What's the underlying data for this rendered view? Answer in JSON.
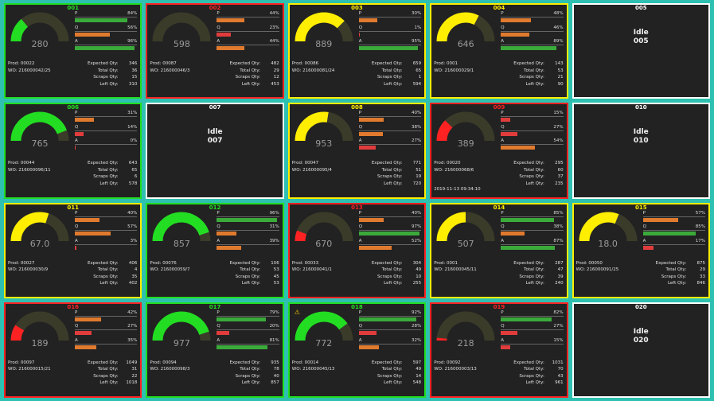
{
  "colors": {
    "green": "#22dd22",
    "red": "#ff2222",
    "yellow": "#ffee00",
    "white": "#ffffff",
    "bar_red": "#e03c3c",
    "bar_orange": "#e07a2e",
    "bar_green": "#3aaa3a"
  },
  "labels": {
    "p": "P",
    "q": "Q",
    "a": "A",
    "expected": "Expected Qty:",
    "total": "Total Qty:",
    "scraps": "Scraps Qty:",
    "left": "Left Qty:",
    "idle": "Idle"
  },
  "machines": [
    {
      "id": "001",
      "status": "green",
      "gauge": "280",
      "oee": 0.28,
      "p": "84%",
      "pv": 84,
      "q": "56%",
      "qv": 56,
      "a": "96%",
      "av": 96,
      "prod": "Prod: 00022",
      "wo": "WO: 216000042/25",
      "expected": "346",
      "total": "36",
      "scraps": "15",
      "left": "310"
    },
    {
      "id": "002",
      "status": "red",
      "gauge": "598",
      "oee": 0.0,
      "p": "44%",
      "pv": 44,
      "q": "23%",
      "qv": 23,
      "a": "44%",
      "av": 44,
      "prod": "Prod: 00087",
      "wo": "WO: 216000046/3",
      "expected": "482",
      "total": "29",
      "scraps": "12",
      "left": "453"
    },
    {
      "id": "003",
      "status": "yellow",
      "gauge": "889",
      "oee": 0.75,
      "p": "30%",
      "pv": 30,
      "q": "1%",
      "qv": 1,
      "a": "95%",
      "av": 95,
      "prod": "Prod: 00086",
      "wo": "WO: 216000081/24",
      "expected": "659",
      "total": "65",
      "scraps": "1",
      "left": "594"
    },
    {
      "id": "004",
      "status": "yellow",
      "gauge": "646",
      "oee": 0.65,
      "p": "48%",
      "pv": 48,
      "q": "46%",
      "qv": 46,
      "a": "89%",
      "av": 89,
      "prod": "Prod: 0001",
      "wo": "WO: 216000029/1",
      "expected": "143",
      "total": "53",
      "scraps": "21",
      "left": "90"
    },
    {
      "id": "005",
      "status": "white",
      "idle": true
    },
    {
      "id": "006",
      "status": "green",
      "gauge": "765",
      "oee": 0.88,
      "p": "31%",
      "pv": 31,
      "q": "14%",
      "qv": 14,
      "a": "0%",
      "av": 0,
      "prod": "Prod: 00044",
      "wo": "WO: 216000096/11",
      "expected": "643",
      "total": "65",
      "scraps": "6",
      "left": "578"
    },
    {
      "id": "007",
      "status": "white",
      "idle": true
    },
    {
      "id": "008",
      "status": "yellow",
      "gauge": "953",
      "oee": 0.55,
      "p": "40%",
      "pv": 40,
      "q": "38%",
      "qv": 38,
      "a": "27%",
      "av": 27,
      "prod": "Prod: 00047",
      "wo": "WO: 216000095/4",
      "expected": "771",
      "total": "51",
      "scraps": "19",
      "left": "720"
    },
    {
      "id": "009",
      "status": "red",
      "gauge": "389",
      "oee": 0.25,
      "p": "15%",
      "pv": 15,
      "q": "27%",
      "qv": 27,
      "a": "54%",
      "av": 54,
      "prod": "Prod: 00020",
      "wo": "WO: 216000068/6",
      "expected": "295",
      "total": "60",
      "scraps": "37",
      "left": "235",
      "timestamp": "2019-11-13 09:34:10"
    },
    {
      "id": "010",
      "status": "white",
      "idle": true
    },
    {
      "id": "011",
      "status": "yellow",
      "gauge": "67.0",
      "oee": 0.6,
      "p": "40%",
      "pv": 40,
      "q": "57%",
      "qv": 57,
      "a": "3%",
      "av": 3,
      "prod": "Prod: 00027",
      "wo": "WO: 216000030/9",
      "expected": "406",
      "total": "4",
      "scraps": "35",
      "left": "402"
    },
    {
      "id": "012",
      "status": "green",
      "gauge": "857",
      "oee": 0.9,
      "p": "96%",
      "pv": 96,
      "q": "31%",
      "qv": 31,
      "a": "39%",
      "av": 39,
      "prod": "Prod: 00076",
      "wo": "WO: 216000059/7",
      "expected": "106",
      "total": "53",
      "scraps": "45",
      "left": "53"
    },
    {
      "id": "013",
      "status": "red",
      "gauge": "670",
      "oee": 0.12,
      "p": "40%",
      "pv": 40,
      "q": "97%",
      "qv": 97,
      "a": "52%",
      "av": 52,
      "prod": "Prod: 00033",
      "wo": "WO: 216000041/1",
      "expected": "304",
      "total": "49",
      "scraps": "10",
      "left": "255"
    },
    {
      "id": "014",
      "status": "yellow",
      "gauge": "507",
      "oee": 0.5,
      "p": "85%",
      "pv": 85,
      "q": "38%",
      "qv": 38,
      "a": "87%",
      "av": 87,
      "prod": "Prod: 0001",
      "wo": "WO: 216000045/11",
      "expected": "287",
      "total": "47",
      "scraps": "39",
      "left": "240"
    },
    {
      "id": "015",
      "status": "yellow",
      "gauge": "18.0",
      "oee": 0.62,
      "p": "57%",
      "pv": 57,
      "q": "85%",
      "qv": 85,
      "a": "17%",
      "av": 17,
      "prod": "Prod: 00050",
      "wo": "WO: 216000091/25",
      "expected": "875",
      "total": "29",
      "scraps": "33",
      "left": "846"
    },
    {
      "id": "016",
      "status": "red",
      "gauge": "189",
      "oee": 0.18,
      "p": "42%",
      "pv": 42,
      "q": "27%",
      "qv": 27,
      "a": "35%",
      "av": 35,
      "prod": "Prod: 00097",
      "wo": "WO: 216000015/21",
      "expected": "1049",
      "total": "31",
      "scraps": "22",
      "left": "1018"
    },
    {
      "id": "017",
      "status": "green",
      "gauge": "977",
      "oee": 0.9,
      "p": "79%",
      "pv": 79,
      "q": "20%",
      "qv": 20,
      "a": "81%",
      "av": 81,
      "prod": "Prod: 00094",
      "wo": "WO: 216000098/3",
      "expected": "935",
      "total": "78",
      "scraps": "40",
      "left": "857"
    },
    {
      "id": "018",
      "status": "green",
      "gauge": "772",
      "oee": 0.8,
      "p": "92%",
      "pv": 92,
      "q": "28%",
      "qv": 28,
      "a": "32%",
      "av": 32,
      "prod": "Prod: 00014",
      "wo": "WO: 216000045/13",
      "expected": "597",
      "total": "49",
      "scraps": "14",
      "left": "548",
      "warning": true
    },
    {
      "id": "019",
      "status": "red",
      "gauge": "218",
      "oee": 0.03,
      "p": "82%",
      "pv": 82,
      "q": "27%",
      "qv": 27,
      "a": "15%",
      "av": 15,
      "prod": "Prod: 00092",
      "wo": "WO: 216000003/13",
      "expected": "1031",
      "total": "70",
      "scraps": "43",
      "left": "961"
    },
    {
      "id": "020",
      "status": "white",
      "idle": true
    }
  ]
}
